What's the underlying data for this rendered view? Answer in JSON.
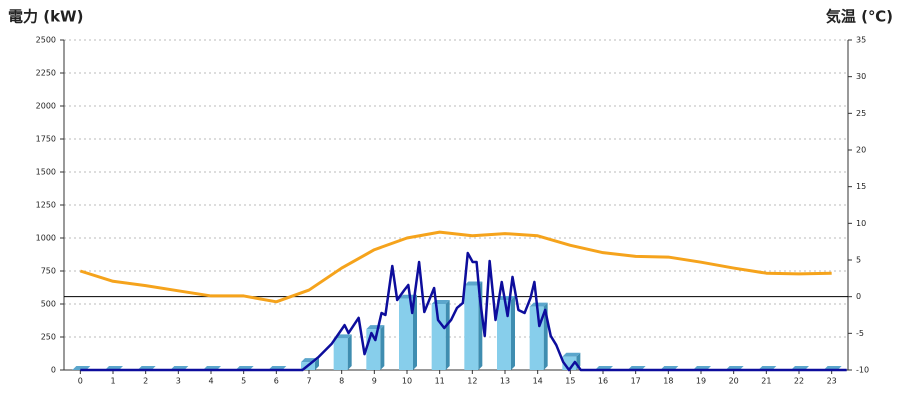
{
  "chart_data": {
    "type": "combo",
    "ylabel": "電力 (kW)",
    "y2label": "気温 (℃)",
    "ylabel_color": "#1a6fb5",
    "y2label_color": "#f08a1c",
    "xlim": [
      -0.5,
      23.5
    ],
    "xticks": [
      0,
      1,
      2,
      3,
      4,
      5,
      6,
      7,
      8,
      9,
      10,
      11,
      12,
      13,
      14,
      15,
      16,
      17,
      18,
      19,
      20,
      21,
      22,
      23
    ],
    "ylim": [
      0,
      2500
    ],
    "yticks": [
      0,
      250,
      500,
      750,
      1000,
      1250,
      1500,
      1750,
      2000,
      2250,
      2500
    ],
    "y2lim": [
      -10,
      35
    ],
    "y2ticks": [
      -10,
      -5,
      0,
      5,
      10,
      15,
      20,
      25,
      30,
      35
    ],
    "grid": true,
    "reference_line": {
      "axis": "y2",
      "value": 0,
      "color": "#000"
    },
    "series": [
      {
        "type": "bar",
        "color": "#87ceeb",
        "values": [
          0,
          0,
          0,
          0,
          0,
          0,
          0,
          60,
          240,
          310,
          540,
          500,
          640,
          530,
          480,
          100,
          0,
          0,
          0,
          0,
          0,
          0,
          0,
          0
        ]
      },
      {
        "type": "line",
        "color": "#0d0d9c",
        "x": [
          0,
          6.8,
          7.3,
          7.7,
          8.09,
          8.21,
          8.52,
          8.7,
          8.91,
          9.03,
          9.22,
          9.34,
          9.55,
          9.7,
          9.92,
          10.04,
          10.16,
          10.37,
          10.53,
          10.68,
          10.83,
          10.95,
          11.14,
          11.35,
          11.53,
          11.71,
          11.86,
          12.01,
          12.13,
          12.23,
          12.38,
          12.53,
          12.71,
          12.9,
          13.08,
          13.23,
          13.41,
          13.6,
          13.78,
          13.9,
          14.05,
          14.23,
          14.4,
          14.57,
          14.78,
          14.96,
          15.14,
          15.32,
          23.46
        ],
        "values": [
          0,
          0,
          100,
          200,
          340,
          280,
          395,
          120,
          280,
          227,
          432,
          417,
          788,
          530,
          606,
          644,
          432,
          818,
          439,
          530,
          621,
          379,
          318,
          379,
          470,
          508,
          886,
          818,
          818,
          545,
          258,
          826,
          379,
          667,
          409,
          705,
          455,
          432,
          545,
          667,
          333,
          455,
          258,
          189,
          61,
          0,
          61,
          0,
          0
        ]
      },
      {
        "type": "line",
        "axis": "y2",
        "color": "#f5a31c",
        "values": [
          3.5,
          2.1,
          1.5,
          0.8,
          0.1,
          0.1,
          -0.7,
          0.9,
          3.9,
          6.4,
          8.0,
          8.8,
          8.3,
          8.6,
          8.3,
          7.0,
          6.0,
          5.5,
          5.4,
          4.7,
          3.9,
          3.2,
          3.1,
          3.2
        ]
      }
    ]
  }
}
